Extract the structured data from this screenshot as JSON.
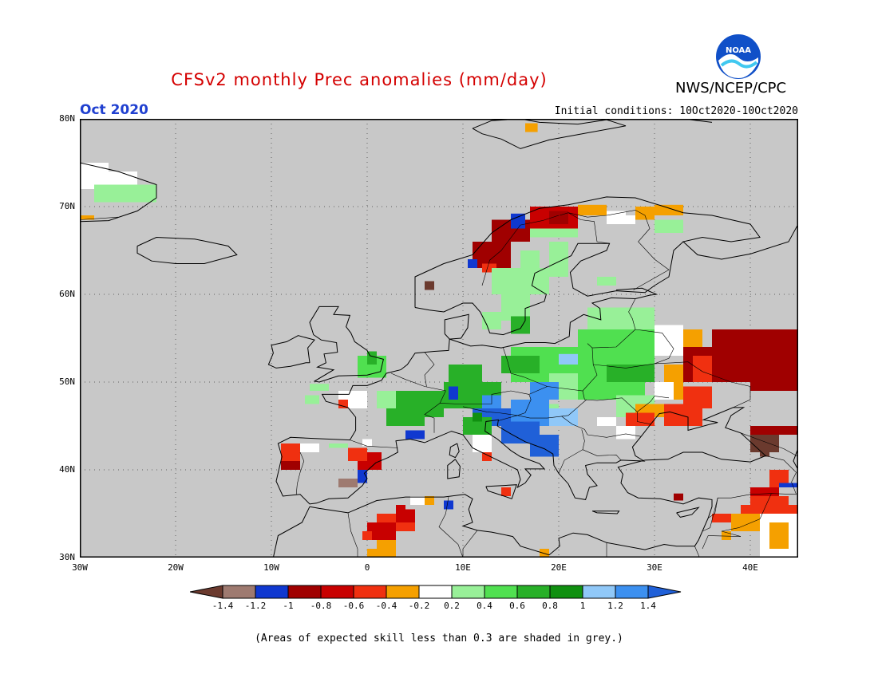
{
  "header": {
    "title": "CFSv2 monthly Prec anomalies (mm/day)",
    "agency": "NWS/NCEP/CPC",
    "month": "Oct 2020",
    "initial_conditions": "Initial conditions: 10Oct2020-10Oct2020",
    "logo_text": "NOAA"
  },
  "map": {
    "lat_labels": [
      "80N",
      "70N",
      "60N",
      "50N",
      "40N",
      "30N"
    ],
    "lon_labels": [
      "30W",
      "20W",
      "10W",
      "0",
      "10E",
      "20E",
      "30E",
      "40E"
    ],
    "background_color": "#c8c8c8"
  },
  "colorbar": {
    "labels": [
      "-1.4",
      "-1.2",
      "-1",
      "-0.8",
      "-0.6",
      "-0.4",
      "-0.2",
      "0.2",
      "0.4",
      "0.6",
      "0.8",
      "1",
      "1.2",
      "1.4"
    ],
    "colors": [
      "#6b3a2e",
      "#9e7a70",
      "#1038d0",
      "#a00000",
      "#c80000",
      "#f03010",
      "#f5a000",
      "#ffffff",
      "#98f098",
      "#50e050",
      "#28b028",
      "#109010",
      "#90c8f8",
      "#3c90f0",
      "#2060d8"
    ]
  },
  "footnote": "(Areas of expected skill less than 0.3 are shaded in grey.)"
}
